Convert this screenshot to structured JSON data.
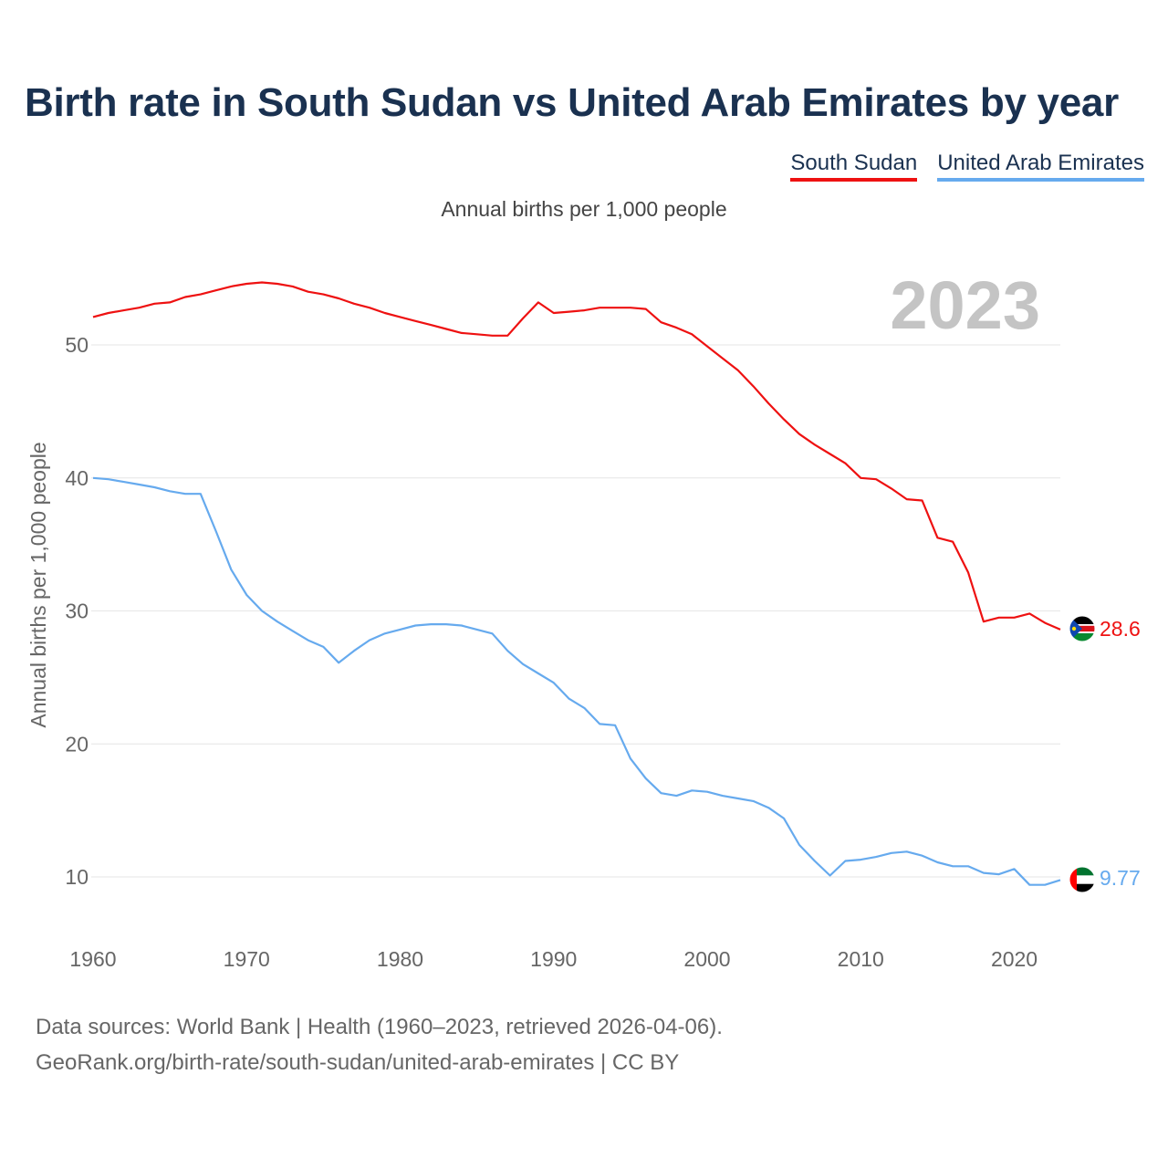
{
  "title": "Birth rate in South Sudan vs United Arab Emirates by year",
  "subtitle": "Annual births per 1,000 people",
  "legend": [
    {
      "label": "South Sudan",
      "color": "#ee1111"
    },
    {
      "label": "United Arab Emirates",
      "color": "#66aaee"
    }
  ],
  "sources": {
    "line1": "Data sources: World Bank | Health (1960–2023, retrieved 2026-04-06).",
    "line2": "GeoRank.org/birth-rate/south-sudan/united-arab-emirates | CC BY"
  },
  "chart_data": {
    "type": "line",
    "title": "Birth rate in South Sudan vs United Arab Emirates by year",
    "ylabel": "Annual births per 1,000 people",
    "xlabel": "",
    "year_label": "2023",
    "xlim": [
      1960,
      2023
    ],
    "ylim": [
      5,
      57
    ],
    "yticks": [
      10,
      20,
      30,
      40,
      50
    ],
    "xticks": [
      1960,
      1970,
      1980,
      1990,
      2000,
      2010,
      2020
    ],
    "grid": true,
    "x": [
      1960,
      1961,
      1962,
      1963,
      1964,
      1965,
      1966,
      1967,
      1968,
      1969,
      1970,
      1971,
      1972,
      1973,
      1974,
      1975,
      1976,
      1977,
      1978,
      1979,
      1980,
      1981,
      1982,
      1983,
      1984,
      1985,
      1986,
      1987,
      1988,
      1989,
      1990,
      1991,
      1992,
      1993,
      1994,
      1995,
      1996,
      1997,
      1998,
      1999,
      2000,
      2001,
      2002,
      2003,
      2004,
      2005,
      2006,
      2007,
      2008,
      2009,
      2010,
      2011,
      2012,
      2013,
      2014,
      2015,
      2016,
      2017,
      2018,
      2019,
      2020,
      2021,
      2022,
      2023
    ],
    "series": [
      {
        "name": "South Sudan",
        "color": "#ee1111",
        "end_label": "28.6",
        "values": [
          52.1,
          52.4,
          52.6,
          52.8,
          53.1,
          53.2,
          53.6,
          53.8,
          54.1,
          54.4,
          54.6,
          54.7,
          54.6,
          54.4,
          54.0,
          53.8,
          53.5,
          53.1,
          52.8,
          52.4,
          52.1,
          51.8,
          51.5,
          51.2,
          50.9,
          50.8,
          50.7,
          50.7,
          52.0,
          53.2,
          52.4,
          52.5,
          52.6,
          52.8,
          52.8,
          52.8,
          52.7,
          51.7,
          51.3,
          50.8,
          49.9,
          49.0,
          48.1,
          46.9,
          45.6,
          44.4,
          43.3,
          42.5,
          41.8,
          41.1,
          40.0,
          39.9,
          39.2,
          38.4,
          38.3,
          35.5,
          35.2,
          32.9,
          29.2,
          29.5,
          29.5,
          29.8,
          29.1,
          28.6
        ]
      },
      {
        "name": "United Arab Emirates",
        "color": "#66aaee",
        "end_label": "9.77",
        "values": [
          40.0,
          39.9,
          39.7,
          39.5,
          39.3,
          39.0,
          38.8,
          38.8,
          36.0,
          33.1,
          31.2,
          30.0,
          29.2,
          28.5,
          27.8,
          27.3,
          26.1,
          27.0,
          27.8,
          28.3,
          28.6,
          28.9,
          29.0,
          29.0,
          28.9,
          28.6,
          28.3,
          27.0,
          26.0,
          25.3,
          24.6,
          23.4,
          22.7,
          21.5,
          21.4,
          18.9,
          17.4,
          16.3,
          16.1,
          16.5,
          16.4,
          16.1,
          15.9,
          15.7,
          15.2,
          14.4,
          12.4,
          11.2,
          10.1,
          11.2,
          11.3,
          11.5,
          11.8,
          11.9,
          11.6,
          11.1,
          10.8,
          10.8,
          10.3,
          10.2,
          10.6,
          9.4,
          9.4,
          9.77
        ]
      }
    ]
  }
}
